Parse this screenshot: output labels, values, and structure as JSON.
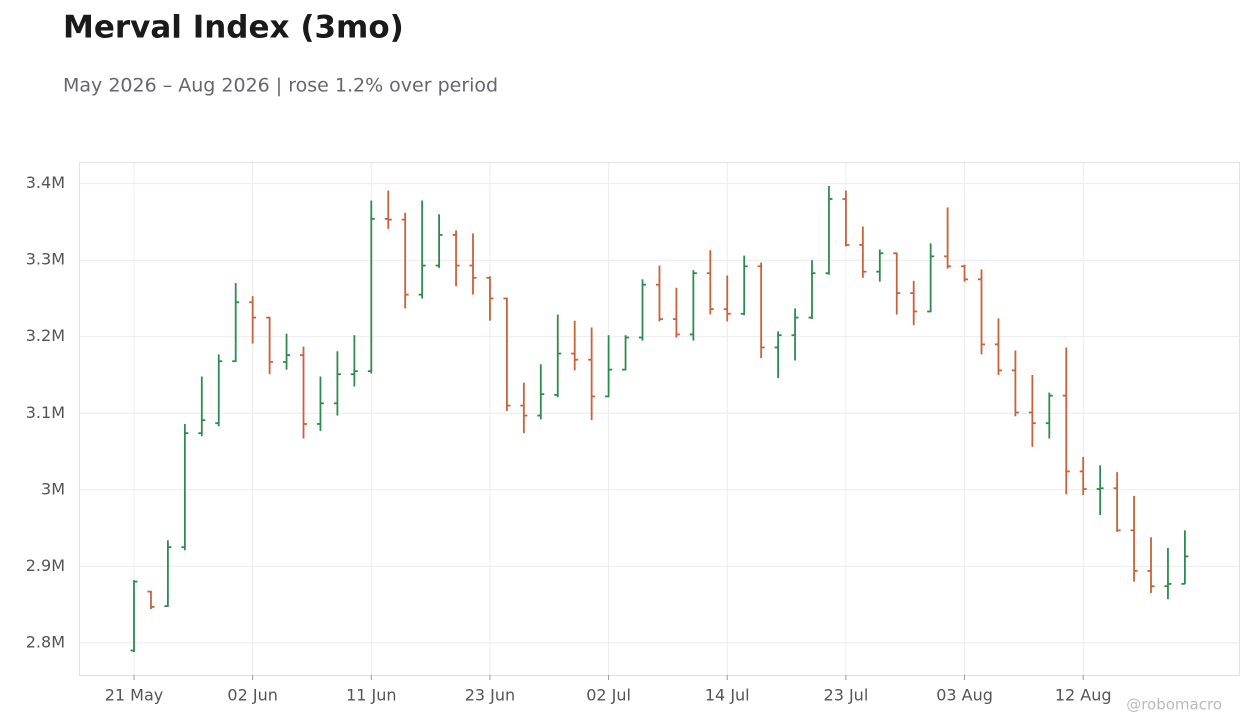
{
  "chart_data": {
    "type": "ohlc",
    "title": "Merval Index (3mo)",
    "subtitle": "May 2026 – Aug 2026 | rose 1.2% over period",
    "watermark": "@robomacro",
    "categories": [
      "21 May",
      null,
      null,
      null,
      null,
      null,
      null,
      "02 Jun",
      null,
      null,
      null,
      null,
      null,
      null,
      "11 Jun",
      null,
      null,
      null,
      null,
      null,
      null,
      "23 Jun",
      null,
      null,
      null,
      null,
      null,
      null,
      "02 Jul",
      null,
      null,
      null,
      null,
      null,
      null,
      "14 Jul",
      null,
      null,
      null,
      null,
      null,
      null,
      "23 Jul",
      null,
      null,
      null,
      null,
      null,
      null,
      "03 Aug",
      null,
      null,
      null,
      null,
      null,
      null,
      "12 Aug",
      null,
      null,
      null,
      null,
      null,
      null
    ],
    "open": [
      2790000,
      2867000,
      2848000,
      2925000,
      3074000,
      3087000,
      3168000,
      3245000,
      3225000,
      3167000,
      3176000,
      3086000,
      3113000,
      3151000,
      3155000,
      3354000,
      3353000,
      3255000,
      3293000,
      3333000,
      3293000,
      3277000,
      3250000,
      3110000,
      3097000,
      3124000,
      3178000,
      3170000,
      3122000,
      3157000,
      3199000,
      3268000,
      3223000,
      3203000,
      3283000,
      3236000,
      3230000,
      3292000,
      3186000,
      3202000,
      3225000,
      3283000,
      3380000,
      3320000,
      3285000,
      3309000,
      3257000,
      3233000,
      3305000,
      3292000,
      3275000,
      3190000,
      3156000,
      3101000,
      3087000,
      3123000,
      3024000,
      3001000,
      3002000,
      2947000,
      2894000,
      2874000,
      2877000
    ],
    "high": [
      2882000,
      2868000,
      2934000,
      3086000,
      3148000,
      3177000,
      3270000,
      3253000,
      3226000,
      3204000,
      3187000,
      3148000,
      3181000,
      3202000,
      3378000,
      3391000,
      3362000,
      3378000,
      3360000,
      3339000,
      3335000,
      3279000,
      3251000,
      3140000,
      3164000,
      3229000,
      3221000,
      3212000,
      3202000,
      3202000,
      3275000,
      3293000,
      3264000,
      3287000,
      3313000,
      3280000,
      3306000,
      3297000,
      3207000,
      3237000,
      3300000,
      3397000,
      3391000,
      3344000,
      3314000,
      3310000,
      3273000,
      3322000,
      3369000,
      3294000,
      3288000,
      3224000,
      3182000,
      3150000,
      3127000,
      3186000,
      3043000,
      3032000,
      3023000,
      2992000,
      2938000,
      2924000,
      2947000
    ],
    "low": [
      2788000,
      2844000,
      2847000,
      2921000,
      3070000,
      3083000,
      3167000,
      3191000,
      3151000,
      3157000,
      3067000,
      3077000,
      3097000,
      3135000,
      3152000,
      3341000,
      3237000,
      3250000,
      3290000,
      3266000,
      3255000,
      3221000,
      3103000,
      3074000,
      3092000,
      3121000,
      3156000,
      3091000,
      3121000,
      3156000,
      3195000,
      3220000,
      3199000,
      3195000,
      3229000,
      3220000,
      3228000,
      3172000,
      3146000,
      3169000,
      3223000,
      3281000,
      3318000,
      3277000,
      3272000,
      3229000,
      3215000,
      3232000,
      3289000,
      3272000,
      3177000,
      3150000,
      3096000,
      3056000,
      3067000,
      2994000,
      2993000,
      2967000,
      2945000,
      2880000,
      2865000,
      2857000,
      2877000
    ],
    "close": [
      2880000,
      2847000,
      2925000,
      3074000,
      3091000,
      3168000,
      3245000,
      3225000,
      3167000,
      3176000,
      3086000,
      3113000,
      3151000,
      3155000,
      3354000,
      3353000,
      3255000,
      3293000,
      3333000,
      3293000,
      3277000,
      3250000,
      3110000,
      3097000,
      3125000,
      3178000,
      3170000,
      3122000,
      3157000,
      3199000,
      3268000,
      3223000,
      3203000,
      3283000,
      3236000,
      3230000,
      3292000,
      3186000,
      3202000,
      3225000,
      3283000,
      3380000,
      3320000,
      3285000,
      3309000,
      3257000,
      3233000,
      3305000,
      3292000,
      3275000,
      3190000,
      3156000,
      3101000,
      3087000,
      3123000,
      3024000,
      3001000,
      3002000,
      2947000,
      2894000,
      2874000,
      2877000,
      2913000
    ],
    "up_color": "#2e8b4f",
    "down_color": "#c8623a",
    "ylim": [
      2758000,
      3427000
    ],
    "yticks": [
      {
        "value": 2800000,
        "label": "2.8M"
      },
      {
        "value": 2900000,
        "label": "2.9M"
      },
      {
        "value": 3000000,
        "label": "3M"
      },
      {
        "value": 3100000,
        "label": "3.1M"
      },
      {
        "value": 3200000,
        "label": "3.2M"
      },
      {
        "value": 3300000,
        "label": "3.3M"
      },
      {
        "value": 3400000,
        "label": "3.4M"
      }
    ],
    "grid": true
  }
}
